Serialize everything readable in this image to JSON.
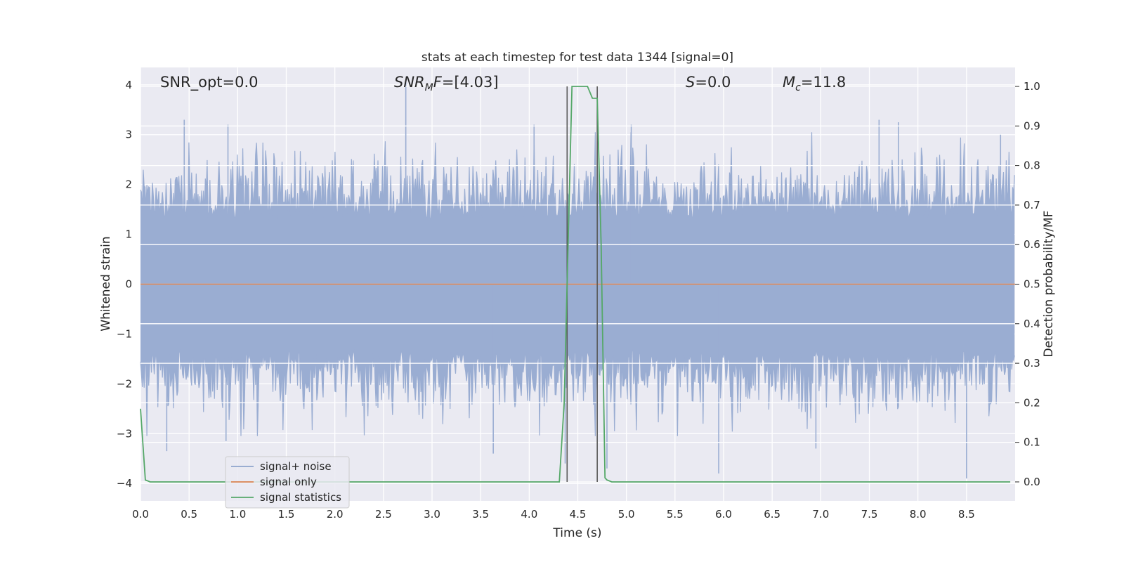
{
  "chart_data": {
    "type": "line",
    "title": "stats at each timestep for test data 1344 [signal=0]",
    "xlabel": "Time (s)",
    "ylabel_left": "Whitened strain",
    "ylabel_right": "Detection probability/MF",
    "xlim": [
      0.0,
      9.0
    ],
    "ylim_left": [
      -4.35,
      4.35
    ],
    "ylim_right": [
      -0.048,
      1.048
    ],
    "x_ticks": [
      "0.0",
      "0.5",
      "1.0",
      "1.5",
      "2.0",
      "2.5",
      "3.0",
      "3.5",
      "4.0",
      "4.5",
      "5.0",
      "5.5",
      "6.0",
      "6.5",
      "7.0",
      "7.5",
      "8.0",
      "8.5"
    ],
    "y_ticks_left": [
      "4",
      "3",
      "2",
      "1",
      "0",
      "−1",
      "−2",
      "−3",
      "−4"
    ],
    "y_ticks_right": [
      "1.0",
      "0.9",
      "0.8",
      "0.7",
      "0.6",
      "0.5",
      "0.4",
      "0.3",
      "0.2",
      "0.1",
      "0.0"
    ],
    "grid": true,
    "legend_position": "lower-left",
    "annotations": [
      {
        "text": "SNR_opt=0.0",
        "x": 0.2,
        "y": 4.1
      },
      {
        "text": "SNRMF=[4.03]",
        "x": 2.6,
        "y": 4.1
      },
      {
        "text": "S=0.0",
        "x": 5.6,
        "y": 4.1
      },
      {
        "text": "Mc=11.8",
        "x": 6.6,
        "y": 4.1
      }
    ],
    "series": [
      {
        "name": "signal+ noise",
        "color": "#8fa4cc",
        "axis": "left",
        "duration": 9.0,
        "sample_rate": 2048,
        "envelope_upper_std": 1.0,
        "peaks": [
          [
            0.45,
            3.3
          ],
          [
            0.9,
            3.2
          ],
          [
            2.73,
            4.05
          ],
          [
            4.05,
            3.2
          ],
          [
            5.05,
            3.2
          ],
          [
            7.6,
            3.3
          ],
          [
            7.8,
            3.25
          ],
          [
            8.85,
            3.0
          ]
        ],
        "troughs": [
          [
            0.27,
            -3.35
          ],
          [
            0.88,
            -3.15
          ],
          [
            3.63,
            -3.4
          ],
          [
            4.37,
            -3.6
          ],
          [
            4.8,
            -3.7
          ],
          [
            5.95,
            -3.8
          ],
          [
            6.95,
            -3.3
          ],
          [
            8.5,
            -3.9
          ]
        ]
      },
      {
        "name": "signal only",
        "color": "#dd8452",
        "axis": "left",
        "x": [
          0.0,
          9.0
        ],
        "y": [
          0.0,
          0.0
        ]
      },
      {
        "name": "signal statistics",
        "color": "#55a868",
        "axis": "right",
        "x": [
          0.0,
          0.05,
          0.1,
          0.15,
          4.31,
          4.36,
          4.44,
          4.5,
          4.6,
          4.65,
          4.7,
          4.74,
          4.78,
          4.8,
          4.85,
          8.95
        ],
        "y": [
          0.185,
          0.005,
          0.0,
          0.0,
          0.0,
          0.2,
          1.0,
          1.0,
          1.0,
          0.97,
          0.97,
          0.6,
          0.01,
          0.005,
          0.0,
          0.0
        ]
      }
    ],
    "vlines": [
      {
        "x": 4.39,
        "ymin": 0.0,
        "ymax": 1.0,
        "color": "#595959",
        "axis": "right"
      },
      {
        "x": 4.7,
        "ymin": 0.0,
        "ymax": 1.0,
        "color": "#595959",
        "axis": "right"
      }
    ]
  },
  "legend": {
    "items": [
      "signal+ noise",
      "signal only",
      "signal statistics"
    ]
  }
}
